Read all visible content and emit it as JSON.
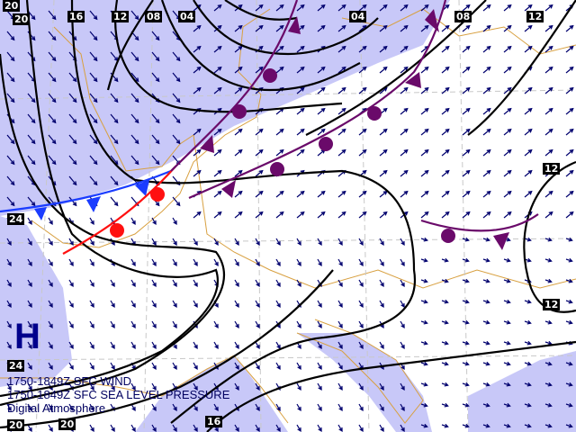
{
  "map": {
    "captions": [
      "1750-1849Z SFC WIND",
      "1750-1849Z SFC SEA LEVEL PRESSURE",
      "Digital Atmosphere"
    ],
    "high_pressure_label": "H",
    "isobar_labels": [
      "20",
      "20",
      "16",
      "12",
      "08",
      "04",
      "04",
      "08",
      "12",
      "12",
      "12",
      "24",
      "24",
      "20",
      "20",
      "16"
    ],
    "colors": {
      "background": "#ffffff",
      "shaded": "#c8c8f8",
      "coastline": "#d8a040",
      "graticule": "#c8c8c8",
      "isobar": "#000000",
      "wind": "#00006e",
      "cold_front": "#1a3cff",
      "warm_front": "#ff1010",
      "occluded_front": "#6a0a6a",
      "high": "#00008c"
    }
  }
}
